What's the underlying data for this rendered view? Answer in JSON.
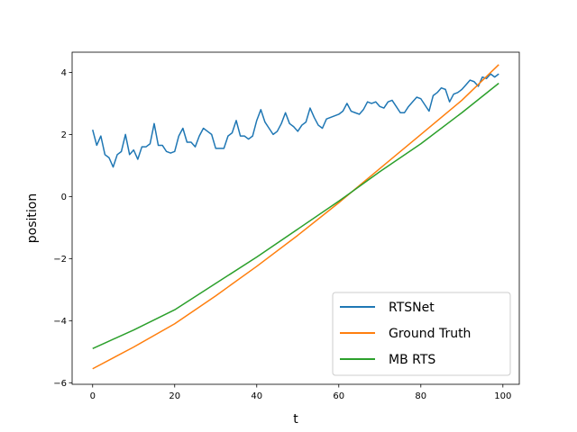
{
  "chart_data": {
    "type": "line",
    "xlabel": "t",
    "ylabel": "position",
    "xlim": [
      -5,
      104
    ],
    "ylim": [
      -6.05,
      4.65
    ],
    "xticks": [
      0,
      20,
      40,
      60,
      80,
      100
    ],
    "yticks": [
      -6,
      -4,
      -2,
      0,
      2,
      4
    ],
    "ytick_labels": [
      "−6",
      "−4",
      "−2",
      "0",
      "2",
      "4"
    ],
    "grid": false,
    "legend_position": "lower-right",
    "series": [
      {
        "name": "RTSNet",
        "color": "#1f77b4",
        "x": [
          0,
          1,
          2,
          3,
          4,
          5,
          6,
          7,
          8,
          9,
          10,
          11,
          12,
          13,
          14,
          15,
          16,
          17,
          18,
          19,
          20,
          21,
          22,
          23,
          24,
          25,
          26,
          27,
          28,
          29,
          30,
          31,
          32,
          33,
          34,
          35,
          36,
          37,
          38,
          39,
          40,
          41,
          42,
          43,
          44,
          45,
          46,
          47,
          48,
          49,
          50,
          51,
          52,
          53,
          54,
          55,
          56,
          57,
          58,
          59,
          60,
          61,
          62,
          63,
          64,
          65,
          66,
          67,
          68,
          69,
          70,
          71,
          72,
          73,
          74,
          75,
          76,
          77,
          78,
          79,
          80,
          81,
          82,
          83,
          84,
          85,
          86,
          87,
          88,
          89,
          90,
          91,
          92,
          93,
          94,
          95,
          96,
          97,
          98,
          99
        ],
        "y": [
          2.15,
          1.65,
          1.95,
          1.35,
          1.25,
          0.95,
          1.35,
          1.45,
          2.0,
          1.35,
          1.5,
          1.2,
          1.6,
          1.6,
          1.7,
          2.35,
          1.65,
          1.65,
          1.45,
          1.4,
          1.45,
          1.95,
          2.2,
          1.75,
          1.75,
          1.6,
          1.95,
          2.2,
          2.1,
          2.0,
          1.55,
          1.55,
          1.55,
          1.95,
          2.05,
          2.45,
          1.95,
          1.95,
          1.85,
          1.95,
          2.45,
          2.8,
          2.4,
          2.2,
          2.0,
          2.1,
          2.35,
          2.7,
          2.35,
          2.25,
          2.1,
          2.3,
          2.4,
          2.85,
          2.55,
          2.3,
          2.2,
          2.5,
          2.55,
          2.6,
          2.65,
          2.75,
          3.0,
          2.75,
          2.7,
          2.65,
          2.8,
          3.05,
          3.0,
          3.05,
          2.9,
          2.85,
          3.05,
          3.1,
          2.9,
          2.7,
          2.7,
          2.9,
          3.05,
          3.2,
          3.15,
          2.95,
          2.75,
          3.25,
          3.35,
          3.5,
          3.45,
          3.05,
          3.3,
          3.35,
          3.45,
          3.6,
          3.75,
          3.7,
          3.55,
          3.85,
          3.8,
          3.95,
          3.85,
          3.95
        ]
      },
      {
        "name": "Ground Truth",
        "color": "#ff7f0e",
        "x": [
          0,
          10,
          20,
          30,
          40,
          50,
          60,
          70,
          80,
          90,
          99
        ],
        "y": [
          -5.55,
          -4.85,
          -4.1,
          -3.2,
          -2.25,
          -1.25,
          -0.2,
          0.9,
          2.0,
          3.1,
          4.25
        ]
      },
      {
        "name": "MB RTS",
        "color": "#2ca02c",
        "x": [
          0,
          10,
          20,
          30,
          40,
          50,
          60,
          70,
          80,
          90,
          99
        ],
        "y": [
          -4.9,
          -4.3,
          -3.65,
          -2.8,
          -1.95,
          -1.05,
          -0.15,
          0.8,
          1.7,
          2.7,
          3.65
        ]
      }
    ]
  }
}
